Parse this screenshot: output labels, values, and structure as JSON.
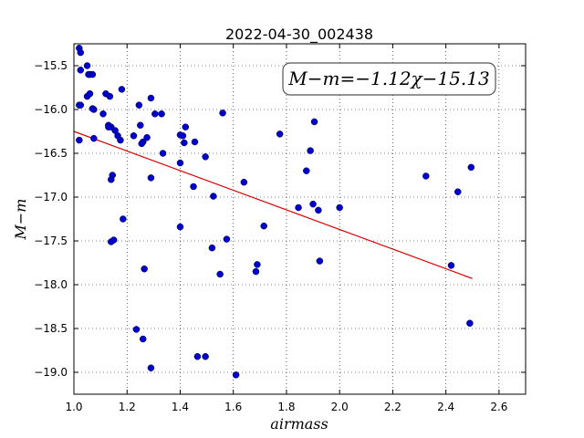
{
  "chart_data": {
    "type": "scatter",
    "title": "2022-04-30_002438",
    "xlabel": "airmass",
    "ylabel": "M−m",
    "xlim": [
      1.0,
      2.7
    ],
    "ylim": [
      -19.25,
      -15.25
    ],
    "y_inverted": true,
    "grid": true,
    "grid_style": "dotted",
    "xticks": [
      1.0,
      1.2,
      1.4,
      1.6,
      1.8,
      2.0,
      2.2,
      2.4,
      2.6
    ],
    "xtick_labels": [
      "1.0",
      "1.2",
      "1.4",
      "1.6",
      "1.8",
      "2.0",
      "2.2",
      "2.4",
      "2.6"
    ],
    "yticks": [
      -15.5,
      -16.0,
      -16.5,
      -17.0,
      -17.5,
      -18.0,
      -18.5,
      -19.0
    ],
    "ytick_labels": [
      "−15.5",
      "−16.0",
      "−16.5",
      "−17.0",
      "−17.5",
      "−18.0",
      "−18.5",
      "−19.0"
    ],
    "annotation": "M−m=−1.12χ−15.13",
    "annotation_position": "top-right",
    "colors": {
      "points": "#0000cc",
      "fit_line": "#dd0000"
    },
    "fit": {
      "slope": -1.12,
      "intercept": -15.13,
      "x_range": [
        1.0,
        2.5
      ]
    },
    "series": [
      {
        "x": [
          1.02,
          1.025,
          1.025,
          1.05,
          1.055,
          1.06,
          1.07,
          1.02,
          1.025,
          1.05,
          1.06,
          1.12,
          1.135,
          1.18,
          1.07,
          1.075,
          1.11,
          1.13,
          1.14,
          1.13,
          1.155,
          1.165,
          1.175,
          1.225,
          1.25,
          1.245,
          1.29,
          1.305,
          1.33,
          1.26,
          1.275,
          1.335,
          1.02,
          1.075,
          1.255,
          1.4,
          1.41,
          1.42,
          1.415,
          1.455,
          1.495,
          1.4,
          1.45,
          1.525,
          1.56,
          1.145,
          1.14,
          1.29,
          1.185,
          1.4,
          1.575,
          1.52,
          1.64,
          1.715,
          1.69,
          1.685,
          1.55,
          1.14,
          1.15,
          1.265,
          1.235,
          1.26,
          1.29,
          1.465,
          1.495,
          1.61,
          1.905,
          1.89,
          1.775,
          1.875,
          1.845,
          1.9,
          1.92,
          2.0,
          1.925,
          2.325,
          2.445,
          2.495,
          2.42,
          2.49
        ],
        "y": [
          -15.3,
          -15.35,
          -15.55,
          -15.5,
          -15.6,
          -15.6,
          -15.6,
          -15.95,
          -15.95,
          -15.85,
          -15.82,
          -15.82,
          -15.85,
          -15.77,
          -15.99,
          -16.0,
          -16.05,
          -16.18,
          -16.2,
          -16.2,
          -16.24,
          -16.3,
          -16.35,
          -16.3,
          -16.18,
          -15.95,
          -15.87,
          -16.05,
          -16.05,
          -16.37,
          -16.32,
          -16.5,
          -16.35,
          -16.33,
          -16.39,
          -16.29,
          -16.3,
          -16.2,
          -16.38,
          -16.37,
          -16.54,
          -16.61,
          -16.88,
          -16.99,
          -16.04,
          -16.75,
          -16.8,
          -16.78,
          -17.25,
          -17.34,
          -17.48,
          -17.58,
          -16.83,
          -17.33,
          -17.77,
          -17.85,
          -17.88,
          -17.51,
          -17.49,
          -17.82,
          -18.51,
          -18.62,
          -18.95,
          -18.82,
          -18.82,
          -19.03,
          -16.14,
          -16.47,
          -16.28,
          -16.7,
          -17.12,
          -17.08,
          -17.15,
          -17.12,
          -17.73,
          -16.76,
          -16.94,
          -16.66,
          -17.78,
          -18.44
        ]
      }
    ]
  }
}
